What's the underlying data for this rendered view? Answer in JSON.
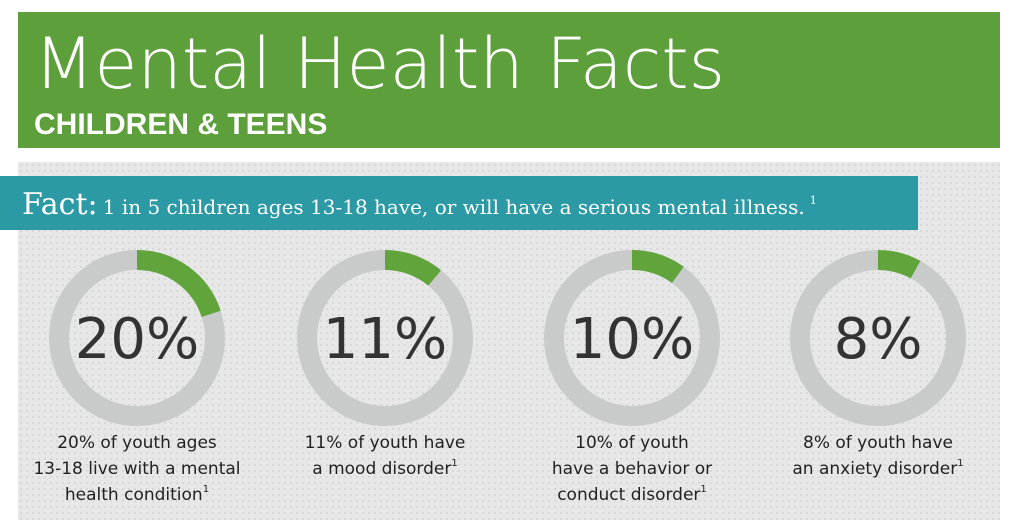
{
  "header": {
    "title": "Mental Health Facts",
    "subtitle": "CHILDREN & TEENS"
  },
  "fact": {
    "label": "Fact:",
    "text": "1 in 5 children ages 13-18 have, or will have a serious mental illness.",
    "note": "1"
  },
  "chart_data": [
    {
      "type": "donut",
      "values": [
        20
      ],
      "value_labels": [
        "20%"
      ],
      "color": "#62a43c",
      "caption": [
        "20% of youth ages",
        "13-18 live with a mental",
        "health condition"
      ],
      "note": "1"
    },
    {
      "type": "donut",
      "values": [
        11
      ],
      "value_labels": [
        "11%"
      ],
      "color": "#62a43c",
      "caption": [
        "11% of youth have",
        "a mood disorder"
      ],
      "note": "1"
    },
    {
      "type": "donut",
      "values": [
        10
      ],
      "value_labels": [
        "10%"
      ],
      "color": "#62a43c",
      "caption": [
        "10% of youth",
        "have a behavior or",
        "conduct disorder"
      ],
      "note": "1"
    },
    {
      "type": "donut",
      "values": [
        8
      ],
      "value_labels": [
        "8%"
      ],
      "color": "#62a43c",
      "caption": [
        "8% of youth have",
        "an anxiety disorder"
      ],
      "note": "1"
    }
  ]
}
